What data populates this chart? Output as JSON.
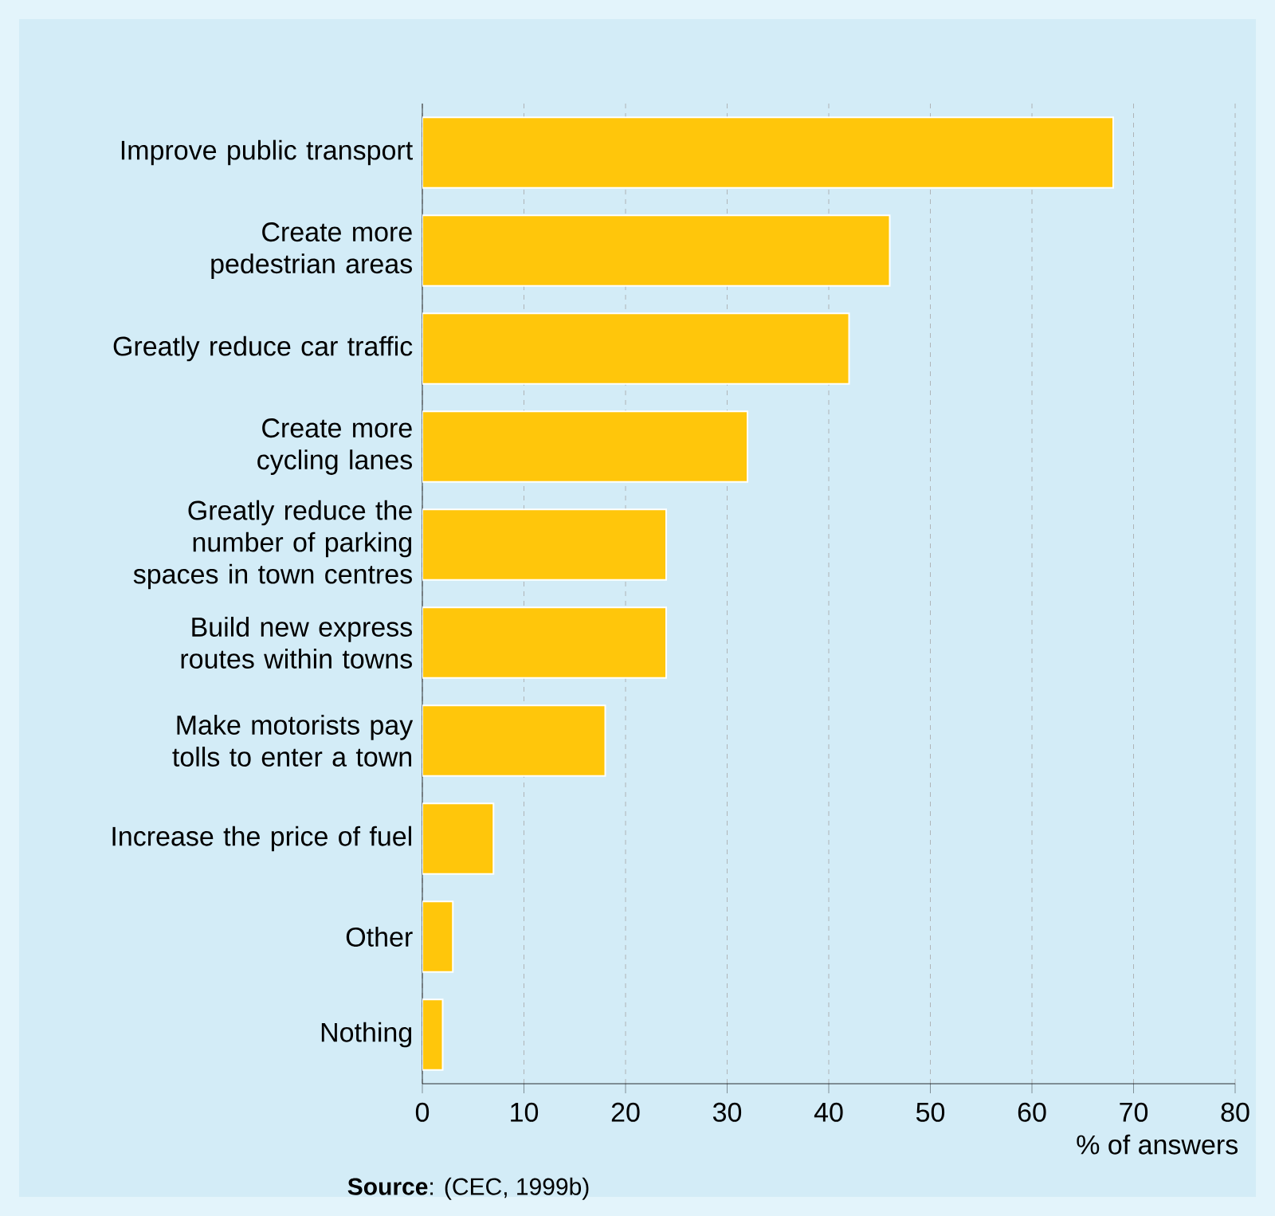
{
  "chart_data": {
    "type": "bar",
    "orientation": "horizontal",
    "categories": [
      "Improve public transport",
      "Create more pedestrian areas",
      "Greatly reduce car traffic",
      "Create more cycling lanes",
      "Greatly reduce the number of parking spaces in town centres",
      "Build new express routes within towns",
      "Make motorists pay tolls to enter a town",
      "Increase the price of fuel",
      "Other",
      "Nothing"
    ],
    "values": [
      68,
      46,
      42,
      32,
      24,
      24,
      18,
      7,
      3,
      2
    ],
    "color": "#ffc60b",
    "xlim": [
      0,
      80
    ],
    "xticks": [
      0,
      10,
      20,
      30,
      40,
      50,
      60,
      70,
      80
    ],
    "grid": "x",
    "xlabel": "% of answers",
    "annotations": [
      "**Source**: (CEC, 1999b)"
    ]
  }
}
